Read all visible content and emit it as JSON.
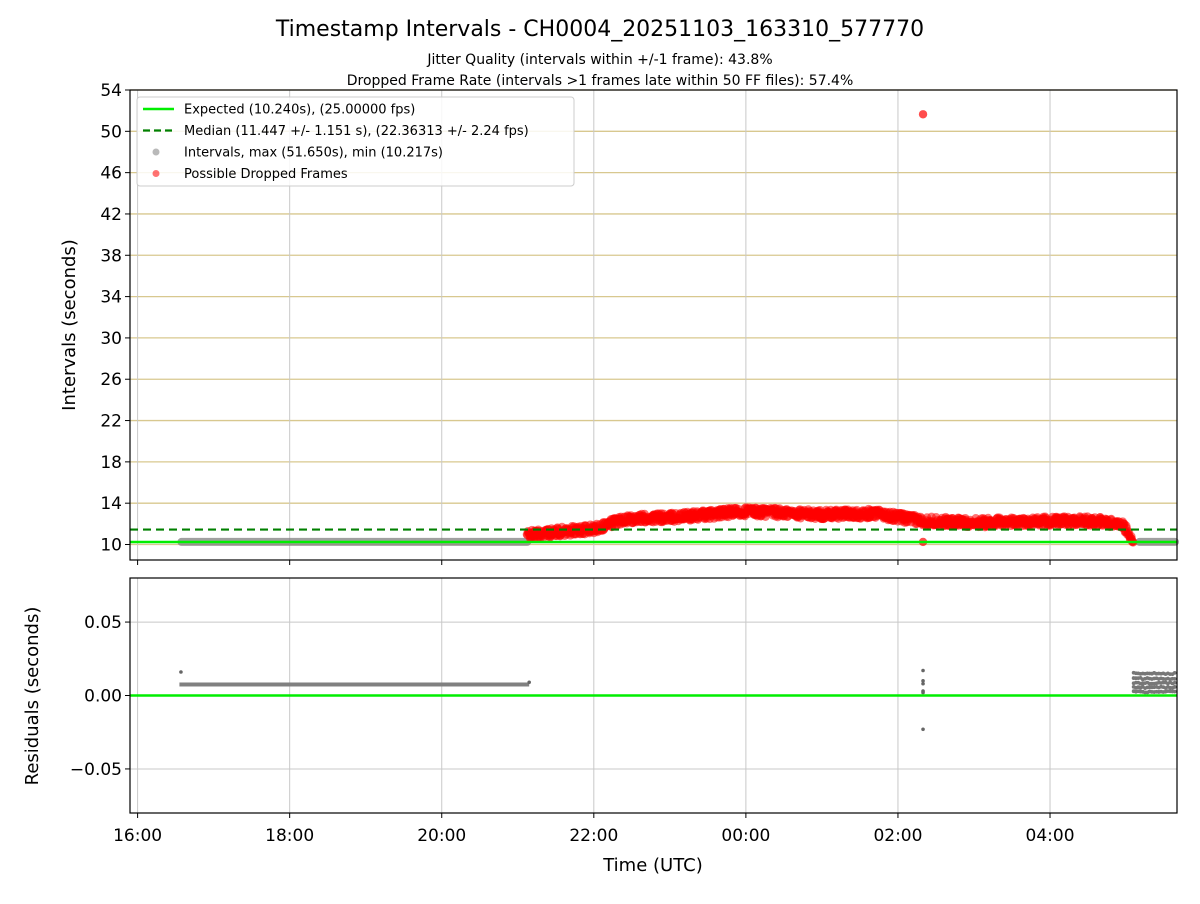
{
  "title": "Timestamp Intervals - CH0004_20251103_163310_577770",
  "subtitles": [
    "Jitter Quality (intervals within +/-1 frame): 43.8%",
    "Dropped Frame Rate (intervals >1 frames late within 50 FF files): 57.4%"
  ],
  "colors": {
    "expected": "#00ee00",
    "median": "#008000",
    "intervals": "#808080",
    "dropped": "#ff0000",
    "grid_h": "#d8c88f",
    "grid": "#c8c8c8"
  },
  "chart_data": [
    {
      "type": "scatter",
      "ylabel": "Intervals (seconds)",
      "ylim": [
        8.5,
        54
      ],
      "yticks": [
        10,
        14,
        18,
        22,
        26,
        30,
        34,
        38,
        42,
        46,
        50,
        54
      ],
      "xlim_hours": [
        15.9,
        29.67
      ],
      "xticks": [
        {
          "h": 16,
          "label": "16:00"
        },
        {
          "h": 18,
          "label": "18:00"
        },
        {
          "h": 20,
          "label": "20:00"
        },
        {
          "h": 22,
          "label": "22:00"
        },
        {
          "h": 24,
          "label": "00:00"
        },
        {
          "h": 26,
          "label": "02:00"
        },
        {
          "h": 28,
          "label": "04:00"
        }
      ],
      "grid": true,
      "legend_position": "top-left",
      "legend": [
        {
          "label": "Expected (10.240s), (25.00000 fps)",
          "kind": "solid-line",
          "color_key": "expected"
        },
        {
          "label": "Median (11.447 +/- 1.151 s), (22.36313 +/- 2.24 fps)",
          "kind": "dashed-line",
          "color_key": "median"
        },
        {
          "label": "Intervals, max (51.650s), min (10.217s)",
          "kind": "dot",
          "color_key": "intervals"
        },
        {
          "label": "Possible Dropped Frames",
          "kind": "dot",
          "color_key": "dropped"
        }
      ],
      "expected": 10.24,
      "median": 11.447,
      "series": [
        {
          "name": "Intervals, max (51.650s), min (10.217s)",
          "segments": [
            {
              "x_start": 16.55,
              "x_end": 21.15,
              "y": 10.25
            },
            {
              "x_start": 29.15,
              "x_end": 29.67,
              "y": 10.25
            }
          ]
        },
        {
          "name": "Possible Dropped Frames",
          "profile": [
            {
              "x": 21.12,
              "y": 10.9
            },
            {
              "x": 21.5,
              "y": 11.2
            },
            {
              "x": 22.0,
              "y": 11.5
            },
            {
              "x": 22.4,
              "y": 12.5
            },
            {
              "x": 23.0,
              "y": 12.6
            },
            {
              "x": 24.0,
              "y": 13.2
            },
            {
              "x": 25.0,
              "y": 12.9
            },
            {
              "x": 25.7,
              "y": 13.0
            },
            {
              "x": 26.3,
              "y": 12.3
            },
            {
              "x": 27.0,
              "y": 12.1
            },
            {
              "x": 27.5,
              "y": 12.2
            },
            {
              "x": 28.5,
              "y": 12.3
            },
            {
              "x": 28.95,
              "y": 12.0
            },
            {
              "x": 29.1,
              "y": 10.3
            }
          ],
          "outliers": [
            {
              "x": 26.33,
              "y": 51.65
            },
            {
              "x": 26.33,
              "y": 10.25
            }
          ]
        }
      ]
    },
    {
      "type": "scatter",
      "xlabel": "Time (UTC)",
      "ylabel": "Residuals (seconds)",
      "ylim": [
        -0.08,
        0.08
      ],
      "yticks": [
        {
          "v": 0.05,
          "label": "0.05"
        },
        {
          "v": 0.0,
          "label": "0.00"
        },
        {
          "v": -0.05,
          "label": "−0.05"
        }
      ],
      "xlim_hours": [
        15.9,
        29.67
      ],
      "grid": true,
      "zero_line": 0.0,
      "series": [
        {
          "name": "Residuals",
          "segments": [
            {
              "x_start": 16.55,
              "x_end": 21.15,
              "y": 0.0075
            }
          ],
          "points": [
            {
              "x": 16.57,
              "y": 0.016
            },
            {
              "x": 21.15,
              "y": 0.009
            },
            {
              "x": 26.33,
              "y": 0.017
            },
            {
              "x": 26.33,
              "y": 0.01
            },
            {
              "x": 26.33,
              "y": 0.008
            },
            {
              "x": 26.33,
              "y": 0.003
            },
            {
              "x": 26.33,
              "y": 0.002
            },
            {
              "x": 26.33,
              "y": -0.023
            }
          ],
          "band": {
            "x_start": 29.1,
            "x_end": 29.67,
            "values": [
              0.0025,
              0.0055,
              0.0085,
              0.0115,
              0.015
            ]
          }
        }
      ]
    }
  ]
}
